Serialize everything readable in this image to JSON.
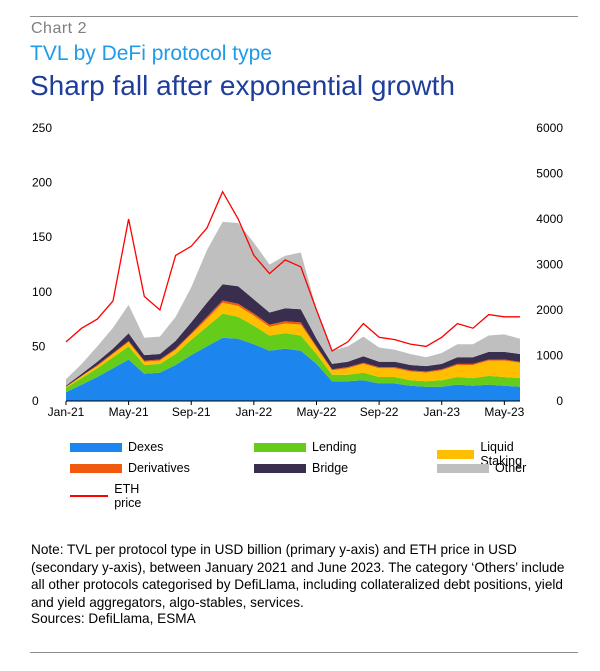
{
  "header": {
    "chart_label": "Chart   2",
    "subtitle": "TVL by DeFi protocol type",
    "title": "Sharp fall after exponential growth"
  },
  "legend": [
    {
      "label": "Dexes",
      "color": "#1c86ee"
    },
    {
      "label": "Lending",
      "color": "#66cc1a"
    },
    {
      "label": "Liquid Staking",
      "color": "#ffbf00"
    },
    {
      "label": "Derivatives",
      "color": "#ef5a0f"
    },
    {
      "label": "Bridge",
      "color": "#3a2e4f"
    },
    {
      "label": "Other",
      "color": "#bfbfbf"
    },
    {
      "label": "ETH price",
      "color": "#ff0000"
    }
  ],
  "footer": {
    "note": "Note: TVL per protocol type in USD billion (primary y-axis) and ETH price in USD (secondary y-axis), between January 2021 and June 2023. The category ‘Others’ include all other protocols categorised by DefiLlama, including collateralized debt positions, yield and yield aggregators, algo-stables, services.",
    "sources": "Sources: DefiLlama, ESMA"
  },
  "chart_data": {
    "type": "area",
    "title": "TVL by DeFi protocol type",
    "ylim": [
      0,
      250
    ],
    "y2lim": [
      0,
      6000
    ],
    "y_ticks": [
      0,
      50,
      100,
      150,
      200,
      250
    ],
    "y2_ticks": [
      0,
      1000,
      2000,
      3000,
      4000,
      5000,
      6000
    ],
    "x_tick_labels": [
      "Jan-21",
      "May-21",
      "Sep-21",
      "Jan-22",
      "May-22",
      "Sep-22",
      "Jan-23",
      "May-23"
    ],
    "x": [
      "Jan-21",
      "Feb-21",
      "Mar-21",
      "Apr-21",
      "May-21",
      "Jun-21",
      "Jul-21",
      "Aug-21",
      "Sep-21",
      "Oct-21",
      "Nov-21",
      "Dec-21",
      "Jan-22",
      "Feb-22",
      "Mar-22",
      "Apr-22",
      "May-22",
      "Jun-22",
      "Jul-22",
      "Aug-22",
      "Sep-22",
      "Oct-22",
      "Nov-22",
      "Dec-22",
      "Jan-23",
      "Feb-23",
      "Mar-23",
      "Apr-23",
      "May-23",
      "Jun-23"
    ],
    "series": [
      {
        "name": "Dexes",
        "values": [
          8,
          15,
          22,
          30,
          38,
          25,
          26,
          33,
          42,
          50,
          58,
          57,
          52,
          46,
          48,
          46,
          34,
          18,
          18,
          19,
          16,
          16,
          14,
          13,
          13,
          15,
          14,
          15,
          14,
          13
        ]
      },
      {
        "name": "Lending",
        "values": [
          4,
          6,
          8,
          10,
          12,
          8,
          8,
          10,
          14,
          18,
          22,
          20,
          17,
          14,
          14,
          14,
          9,
          6,
          6,
          7,
          6,
          6,
          5,
          5,
          6,
          7,
          7,
          8,
          8,
          8
        ]
      },
      {
        "name": "Liquid Staking",
        "values": [
          1,
          2,
          2,
          3,
          4,
          3,
          3,
          4,
          5,
          7,
          10,
          10,
          9,
          8,
          9,
          10,
          6,
          4,
          6,
          8,
          8,
          8,
          8,
          8,
          9,
          11,
          12,
          14,
          15,
          14
        ]
      },
      {
        "name": "Derivatives",
        "values": [
          0,
          0,
          1,
          1,
          1,
          1,
          1,
          1,
          1,
          2,
          2,
          2,
          2,
          2,
          2,
          2,
          1,
          1,
          1,
          1,
          1,
          1,
          1,
          1,
          1,
          1,
          1,
          1,
          1,
          1
        ]
      },
      {
        "name": "Bridge",
        "values": [
          1,
          2,
          3,
          4,
          7,
          5,
          5,
          7,
          10,
          13,
          15,
          16,
          13,
          11,
          12,
          12,
          7,
          5,
          5,
          6,
          5,
          5,
          5,
          5,
          5,
          6,
          6,
          7,
          7,
          7
        ]
      },
      {
        "name": "Other",
        "values": [
          6,
          9,
          14,
          19,
          26,
          16,
          16,
          22,
          32,
          48,
          57,
          58,
          52,
          44,
          48,
          52,
          27,
          12,
          14,
          18,
          13,
          11,
          10,
          8,
          10,
          12,
          12,
          15,
          16,
          14
        ]
      },
      {
        "name": "ETH price",
        "axis": "secondary",
        "values": [
          1300,
          1600,
          1800,
          2200,
          4000,
          2300,
          2000,
          3200,
          3400,
          3800,
          4600,
          4000,
          3200,
          2800,
          3100,
          2950,
          2000,
          1100,
          1300,
          1700,
          1400,
          1350,
          1250,
          1200,
          1400,
          1700,
          1600,
          1900,
          1850,
          1850
        ]
      }
    ]
  }
}
